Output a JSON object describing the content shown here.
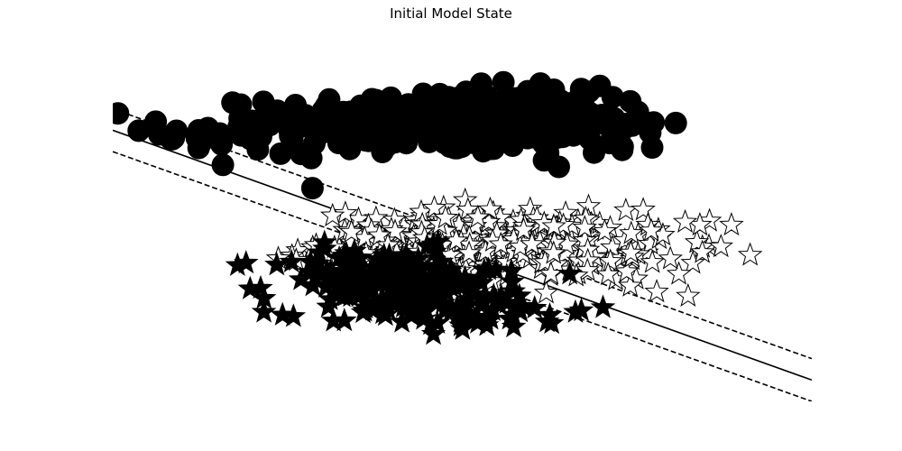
{
  "chart_data": {
    "type": "scatter",
    "title": "Initial Model State",
    "xlabel": "",
    "ylabel": "",
    "xlim": [
      -3.5,
      5.0
    ],
    "ylim": [
      -2.0,
      4.5
    ],
    "grid": false,
    "axes_visible": false,
    "colors": {
      "filled": "#000000",
      "hollow_fill": "#ffffff",
      "edge": "#000000"
    },
    "series": [
      {
        "marker": "circle",
        "style": "filled",
        "clusters": [
          {
            "cx": 0.4,
            "cy": 3.25,
            "sx": 0.95,
            "sy": 0.3,
            "n": 260
          },
          {
            "cx": -1.8,
            "cy": 3.05,
            "sx": 0.55,
            "sy": 0.4,
            "n": 35
          },
          {
            "cx": 2.3,
            "cy": 3.2,
            "sx": 0.5,
            "sy": 0.35,
            "n": 45
          }
        ]
      },
      {
        "marker": "star",
        "style": "hollow",
        "clusters": [
          {
            "cx": 0.9,
            "cy": 0.95,
            "sx": 0.95,
            "sy": 0.32,
            "n": 300
          },
          {
            "cx": 2.9,
            "cy": 0.7,
            "sx": 0.55,
            "sy": 0.38,
            "n": 35
          }
        ]
      },
      {
        "marker": "star",
        "style": "filled",
        "clusters": [
          {
            "cx": -0.2,
            "cy": 0.25,
            "sx": 0.7,
            "sy": 0.3,
            "n": 200
          },
          {
            "cx": 0.9,
            "cy": -0.3,
            "sx": 0.7,
            "sy": 0.2,
            "n": 60
          }
        ]
      }
    ],
    "decision_lines": [
      {
        "style": "solid",
        "slope": -0.55,
        "intercept": 1.15
      },
      {
        "style": "dashed",
        "slope": -0.55,
        "intercept": 1.55
      },
      {
        "style": "dashed",
        "slope": -0.55,
        "intercept": 0.75
      }
    ]
  }
}
